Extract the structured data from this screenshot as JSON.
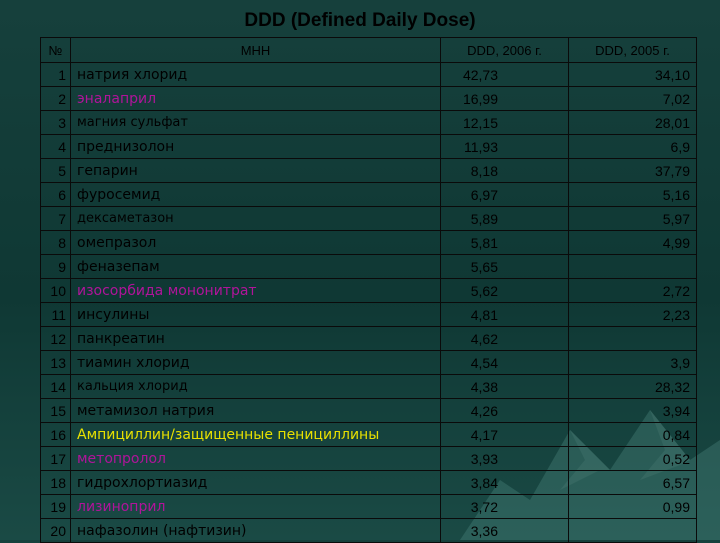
{
  "title": "DDD (Defined Daily Dose)",
  "headers": {
    "num": "№",
    "inn": "МНН",
    "ddd2006": "DDD, 2006 г.",
    "ddd2005": "DDD, 2005 г."
  },
  "rows": [
    {
      "n": "1",
      "name": "натрия хлорид",
      "v2006": "42,73",
      "v2005": "34,10",
      "color": "",
      "small": false
    },
    {
      "n": "2",
      "name": "эналаприл",
      "v2006": "16,99",
      "v2005": "7,02",
      "color": "#b0149a",
      "small": false
    },
    {
      "n": "3",
      "name": "магния сульфат",
      "v2006": "12,15",
      "v2005": "28,01",
      "color": "",
      "small": true
    },
    {
      "n": "4",
      "name": "преднизолон",
      "v2006": "11,93",
      "v2005": "6,9",
      "color": "",
      "small": false
    },
    {
      "n": "5",
      "name": "гепарин",
      "v2006": "8,18",
      "v2005": "37,79",
      "color": "",
      "small": false
    },
    {
      "n": "6",
      "name": "фуросемид",
      "v2006": "6,97",
      "v2005": "5,16",
      "color": "",
      "small": false
    },
    {
      "n": "7",
      "name": "дексаметазон",
      "v2006": "5,89",
      "v2005": "5,97",
      "color": "",
      "small": true
    },
    {
      "n": "8",
      "name": "омепразол",
      "v2006": "5,81",
      "v2005": "4,99",
      "color": "",
      "small": false
    },
    {
      "n": "9",
      "name": "феназепам",
      "v2006": "5,65",
      "v2005": "",
      "color": "",
      "small": false
    },
    {
      "n": "10",
      "name": "изосорбида мононитрат",
      "v2006": "5,62",
      "v2005": "2,72",
      "color": "#b0149a",
      "small": false
    },
    {
      "n": "11",
      "name": "инсулины",
      "v2006": "4,81",
      "v2005": "2,23",
      "color": "",
      "small": false
    },
    {
      "n": "12",
      "name": "панкреатин",
      "v2006": "4,62",
      "v2005": "",
      "color": "",
      "small": false
    },
    {
      "n": "13",
      "name": "тиамин хлорид",
      "v2006": "4,54",
      "v2005": "3,9",
      "color": "",
      "small": false
    },
    {
      "n": "14",
      "name": "кальция хлорид",
      "v2006": "4,38",
      "v2005": "28,32",
      "color": "",
      "small": true
    },
    {
      "n": "15",
      "name": "метамизол натрия",
      "v2006": "4,26",
      "v2005": "3,94",
      "color": "",
      "small": false
    },
    {
      "n": "16",
      "name": "Ампициллин/защищенные пенициллины",
      "v2006": "4,17",
      "v2005": "0,84",
      "color": "#e8e000",
      "small": false
    },
    {
      "n": "17",
      "name": "метопролол",
      "v2006": "3,93",
      "v2005": "0,52",
      "color": "#b0149a",
      "small": false
    },
    {
      "n": "18",
      "name": "гидрохлортиазид",
      "v2006": "3,84",
      "v2005": "6,57",
      "color": "",
      "small": false
    },
    {
      "n": "19",
      "name": "лизиноприл",
      "v2006": "3,72",
      "v2005": "0,99",
      "color": "#b0149a",
      "small": false
    },
    {
      "n": "20",
      "name": "нафазолин (нафтизин)",
      "v2006": "3,36",
      "v2005": "",
      "color": "",
      "small": false
    }
  ]
}
